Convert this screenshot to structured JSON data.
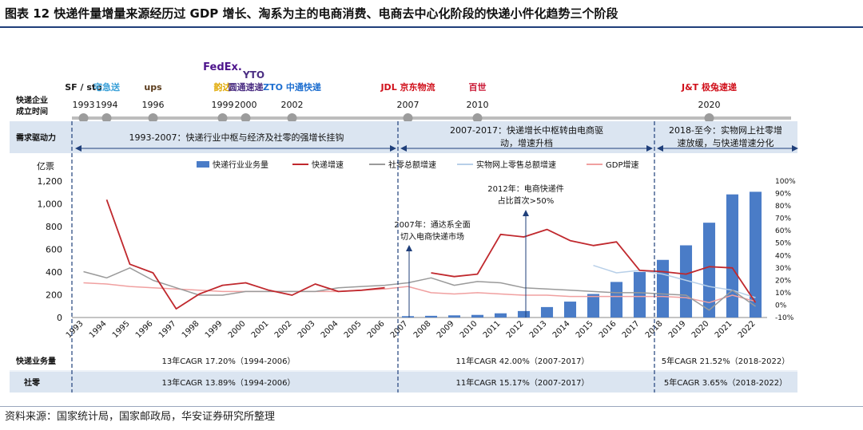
{
  "title": "图表 12 快递件量增量来源经历过 GDP 增长、淘系为主的电商消费、电商去中心化阶段的快递小件化趋势三个阶段",
  "source": "资料来源：国家统计局，国家邮政局，华安证券研究所整理",
  "timeline": {
    "row_label": [
      "快递企业",
      "成立时间"
    ],
    "events": [
      {
        "year": "1993",
        "logo": "SF / sto",
        "color": "#1a1a1a"
      },
      {
        "year": "1994",
        "logo": "宅急送",
        "color": "#3aa0d8"
      },
      {
        "year": "1996",
        "logo": "ups",
        "color": "#5a3b1b"
      },
      {
        "year": "1999",
        "logo": "韵达",
        "color": "#e0a800"
      },
      {
        "year": "2000",
        "logo": "圆通速递",
        "color": "#4b2e83"
      },
      {
        "year": "2002",
        "logo": "ZTO 中通快递",
        "color": "#1e6fd0"
      },
      {
        "year": "2007",
        "logo": "JDL 京东物流",
        "color": "#d0101b"
      },
      {
        "year": "2010",
        "logo": "百世",
        "color": "#c8102e"
      },
      {
        "year": "2020",
        "logo": "J&T 极兔速递",
        "color": "#d0101b"
      }
    ],
    "extra_logos": [
      "FedEx.",
      "YTO"
    ]
  },
  "phases": {
    "row_label": "需求驱动力",
    "items": [
      {
        "text": "1993-2007：快递行业中枢与经济及社零的强增长挂钩"
      },
      {
        "line1": "2007-2017：快递增长中枢转由电商驱",
        "line2": "动，增速升档"
      },
      {
        "line1": "2018-至今：实物网上社零增",
        "line2": "速放缓，与快递增速分化"
      }
    ]
  },
  "legend": {
    "bar": "快递行业业务量",
    "express_growth": "快递增速",
    "retail_growth": "社零总额增速",
    "online_growth": "实物网上零售总额增速",
    "gdp_growth": "GDP增速"
  },
  "annotations": {
    "a2007_line1": "2007年：通达系全面",
    "a2007_line2": "切入电商快递市场",
    "a2012_line1": "2012年：电商快递件",
    "a2012_line2": "占比首次>50%"
  },
  "cagr": {
    "express_label": "快递业务量",
    "retail_label": "社零",
    "express": [
      "13年CAGR 17.20%（1994-2006）",
      "11年CAGR 42.00%（2007-2017）",
      "5年CAGR 21.52%（2018-2022）"
    ],
    "retail": [
      "13年CAGR 13.89%（1994-2006）",
      "11年CAGR 15.17%（2007-2017）",
      "5年CAGR 3.65%（2018-2022）"
    ]
  },
  "chart_data": {
    "type": "bar",
    "categories": [
      "1993",
      "1994",
      "1995",
      "1996",
      "1997",
      "1998",
      "1999",
      "2000",
      "2001",
      "2002",
      "2003",
      "2004",
      "2005",
      "2006",
      "2007",
      "2008",
      "2009",
      "2010",
      "2011",
      "2012",
      "2013",
      "2014",
      "2015",
      "2016",
      "2017",
      "2018",
      "2019",
      "2020",
      "2021",
      "2022"
    ],
    "ylabel_left": "亿票",
    "ylim_left": [
      0,
      1200
    ],
    "yticks_left": [
      "0",
      "200",
      "400",
      "600",
      "800",
      "1,000",
      "1,200"
    ],
    "ylim_right": [
      -10,
      100
    ],
    "yticks_right": [
      "-10%",
      "0%",
      "10%",
      "20%",
      "30%",
      "40%",
      "50%",
      "60%",
      "70%",
      "80%",
      "90%",
      "100%"
    ],
    "grid": false,
    "legend_position": "top",
    "series": [
      {
        "name": "快递行业业务量",
        "type": "bar",
        "axis": "left",
        "color": "#4a7cc7",
        "values": [
          null,
          null,
          null,
          null,
          null,
          null,
          null,
          null,
          null,
          null,
          null,
          null,
          null,
          null,
          12,
          15,
          19,
          23,
          37,
          57,
          92,
          140,
          207,
          313,
          401,
          507,
          635,
          834,
          1083,
          1106
        ]
      },
      {
        "name": "快递增速",
        "type": "line",
        "axis": "right",
        "color": "#c0282d",
        "values": [
          null,
          85,
          33,
          26,
          -3,
          9,
          16,
          18,
          12,
          8,
          17,
          11,
          12,
          14,
          null,
          26,
          23,
          25,
          57,
          55,
          61,
          52,
          48,
          51,
          28,
          27,
          25,
          31,
          30,
          2
        ]
      },
      {
        "name": "社零总额增速",
        "type": "line",
        "axis": "right",
        "color": "#9a9a9a",
        "values": [
          27,
          22,
          30,
          20,
          14,
          8,
          8,
          11,
          11,
          11,
          11,
          14,
          15,
          16,
          18,
          22,
          16,
          19,
          18,
          14,
          13,
          12,
          11,
          10,
          10,
          9,
          8,
          -4,
          12,
          -1
        ]
      },
      {
        "name": "实物网上零售总额增速",
        "type": "line",
        "axis": "right",
        "color": "#b7cfe8",
        "values": [
          null,
          null,
          null,
          null,
          null,
          null,
          null,
          null,
          null,
          null,
          null,
          null,
          null,
          null,
          null,
          null,
          null,
          null,
          null,
          null,
          null,
          null,
          32,
          26,
          28,
          25,
          20,
          15,
          12,
          6
        ]
      },
      {
        "name": "GDP增速",
        "type": "line",
        "axis": "right",
        "color": "#f0a0a0",
        "values": [
          18,
          17,
          15,
          14,
          13,
          12,
          11,
          11,
          11,
          11,
          11,
          11,
          12,
          13,
          15,
          10,
          9,
          10,
          9,
          8,
          8,
          7,
          7,
          7,
          7,
          7,
          6,
          2,
          8,
          3
        ]
      }
    ]
  }
}
